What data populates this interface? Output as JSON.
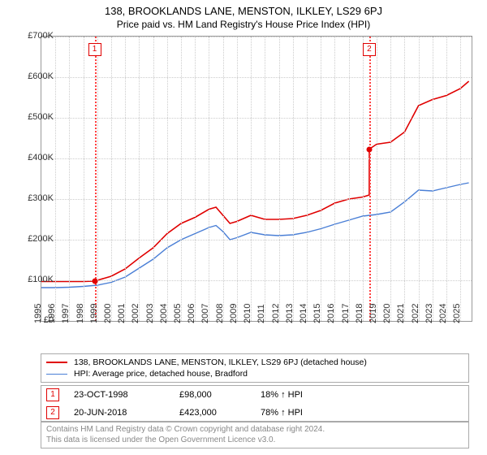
{
  "title": "138, BROOKLANDS LANE, MENSTON, ILKLEY, LS29 6PJ",
  "subtitle": "Price paid vs. HM Land Registry's House Price Index (HPI)",
  "chart": {
    "type": "line",
    "background_color": "#ffffff",
    "grid_color": "#cccccc",
    "border_color": "#999999",
    "ylim": [
      0,
      700000
    ],
    "ytick_step": 100000,
    "ytick_labels": [
      "£0",
      "£100K",
      "£200K",
      "£300K",
      "£400K",
      "£500K",
      "£600K",
      "£700K"
    ],
    "xlim": [
      1995,
      2025.8
    ],
    "xtick_step": 1,
    "xtick_labels": [
      "1995",
      "1996",
      "1997",
      "1998",
      "1999",
      "2000",
      "2001",
      "2002",
      "2003",
      "2004",
      "2005",
      "2006",
      "2007",
      "2008",
      "2009",
      "2010",
      "2011",
      "2012",
      "2013",
      "2014",
      "2015",
      "2016",
      "2017",
      "2018",
      "2019",
      "2020",
      "2021",
      "2022",
      "2023",
      "2024",
      "2025"
    ],
    "series": [
      {
        "name": "property",
        "label": "138, BROOKLANDS LANE, MENSTON, ILKLEY, LS29 6PJ (detached house)",
        "color": "#e00000",
        "line_width": 1.6,
        "x": [
          1995,
          1996,
          1997,
          1998,
          1998.8,
          1999,
          2000,
          2001,
          2002,
          2003,
          2004,
          2005,
          2006,
          2007,
          2007.5,
          2008,
          2008.5,
          2009,
          2010,
          2011,
          2012,
          2013,
          2014,
          2015,
          2016,
          2017,
          2018,
          2018.47,
          2018.48,
          2019,
          2020,
          2021,
          2022,
          2023,
          2024,
          2025,
          2025.6
        ],
        "y": [
          97000,
          97000,
          97000,
          97000,
          98000,
          100000,
          110000,
          128000,
          155000,
          180000,
          215000,
          240000,
          255000,
          275000,
          280000,
          260000,
          240000,
          245000,
          260000,
          250000,
          250000,
          252000,
          260000,
          272000,
          290000,
          300000,
          305000,
          310000,
          423000,
          435000,
          440000,
          465000,
          530000,
          545000,
          555000,
          572000,
          590000
        ]
      },
      {
        "name": "hpi",
        "label": "HPI: Average price, detached house, Bradford",
        "color": "#4a7fd6",
        "line_width": 1.4,
        "x": [
          1995,
          1996,
          1997,
          1998,
          1999,
          2000,
          2001,
          2002,
          2003,
          2004,
          2005,
          2006,
          2007,
          2007.5,
          2008,
          2008.5,
          2009,
          2010,
          2011,
          2012,
          2013,
          2014,
          2015,
          2016,
          2017,
          2018,
          2019,
          2020,
          2021,
          2022,
          2023,
          2024,
          2025,
          2025.6
        ],
        "y": [
          82000,
          82000,
          83000,
          85000,
          88000,
          95000,
          108000,
          130000,
          152000,
          180000,
          200000,
          215000,
          230000,
          235000,
          220000,
          200000,
          205000,
          218000,
          212000,
          210000,
          212000,
          218000,
          227000,
          238000,
          248000,
          258000,
          262000,
          268000,
          293000,
          322000,
          320000,
          328000,
          336000,
          340000
        ]
      }
    ],
    "events": [
      {
        "n": "1",
        "x": 1998.81,
        "date": "23-OCT-1998",
        "price": "£98,000",
        "pct": "18% ↑ HPI",
        "point_y": 98000
      },
      {
        "n": "2",
        "x": 2018.47,
        "date": "20-JUN-2018",
        "price": "£423,000",
        "pct": "78% ↑ HPI",
        "point_y": 423000
      }
    ],
    "event_line_color": "#ff4040",
    "event_box_border": "#e00000"
  },
  "legend_font_size": 10.5,
  "footer_line1": "Contains HM Land Registry data © Crown copyright and database right 2024.",
  "footer_line2": "This data is licensed under the Open Government Licence v3.0."
}
